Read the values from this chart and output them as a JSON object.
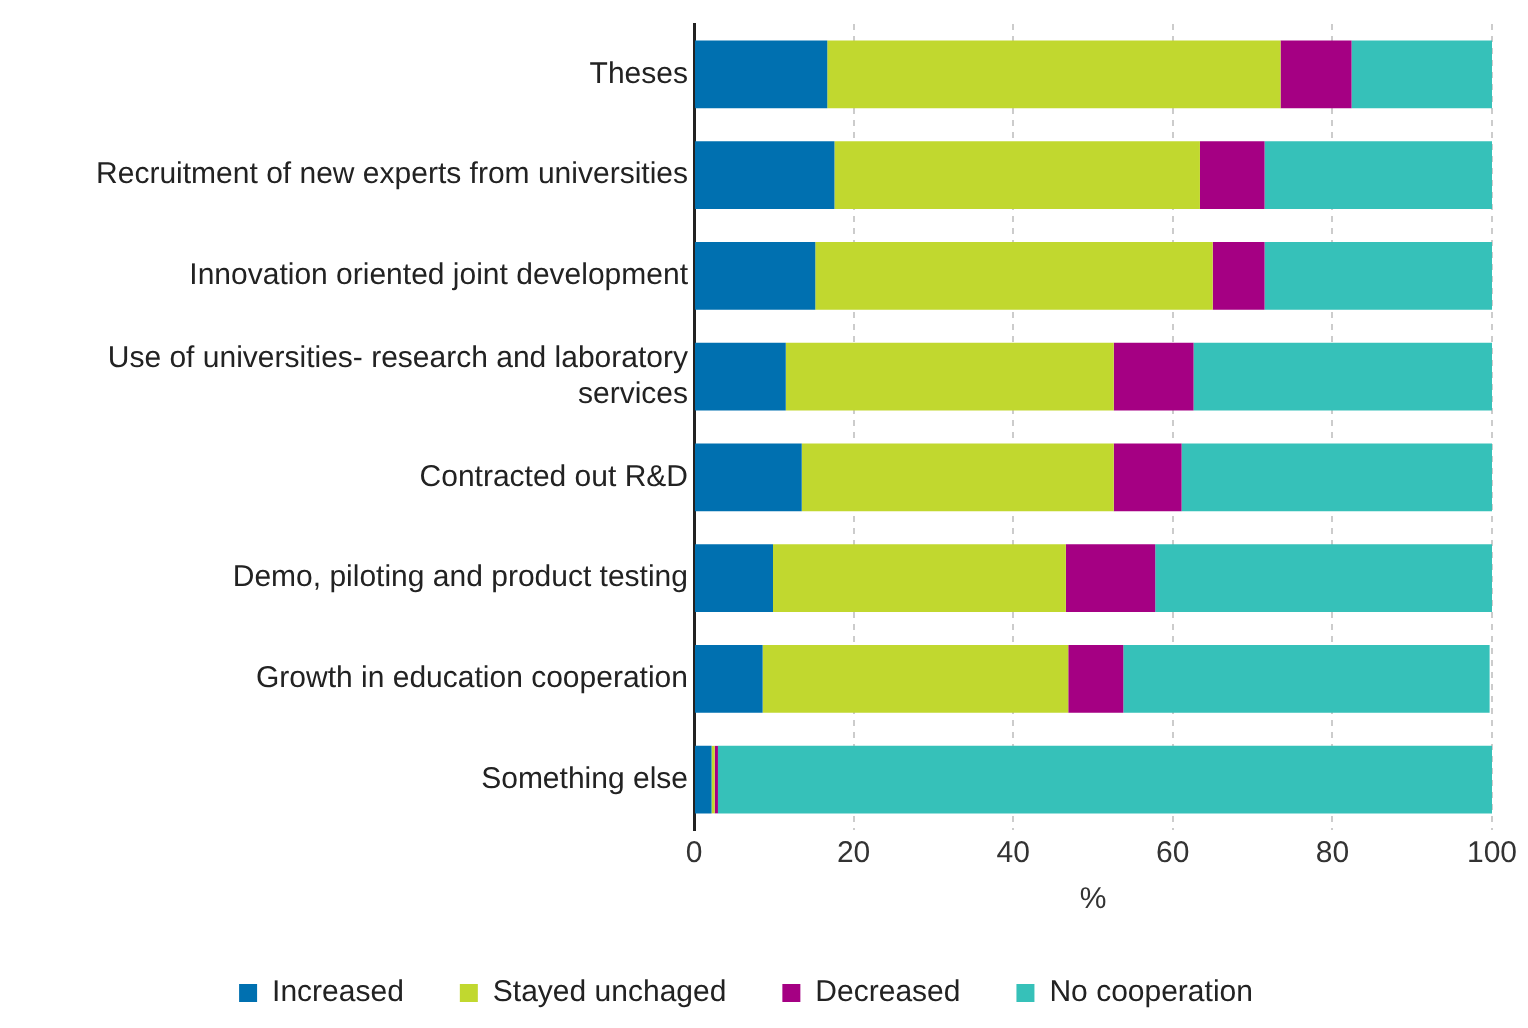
{
  "chart_data": {
    "type": "bar",
    "orientation": "horizontal",
    "stacked": true,
    "categories": [
      "Theses",
      "Recruitment of new experts from universities",
      "Innovation oriented joint development",
      "Use of universities- research and laboratory services",
      "Contracted out R&D",
      "Demo, piloting and product testing",
      "Growth in education cooperation",
      "Something else"
    ],
    "series": [
      {
        "name": "Increased",
        "color": "#0070b0",
        "values": [
          16.7,
          17.6,
          15.2,
          11.5,
          13.5,
          9.9,
          8.6,
          2.2
        ]
      },
      {
        "name": "Stayed unchaged",
        "color": "#c1d82f",
        "values": [
          56.8,
          45.8,
          49.8,
          41.1,
          39.1,
          36.7,
          38.3,
          0.4
        ]
      },
      {
        "name": "Decreased",
        "color": "#a50083",
        "values": [
          8.9,
          8.1,
          6.5,
          10.0,
          8.5,
          11.2,
          6.9,
          0.4
        ]
      },
      {
        "name": "No cooperation",
        "color": "#36c1b9",
        "values": [
          17.6,
          28.5,
          28.5,
          37.4,
          38.9,
          42.2,
          45.9,
          97.0
        ]
      }
    ],
    "xlabel": "%",
    "xlim": [
      0,
      100
    ],
    "xticks": [
      0,
      20,
      40,
      60,
      80,
      100
    ],
    "grid": "x",
    "legend": "bottom"
  }
}
